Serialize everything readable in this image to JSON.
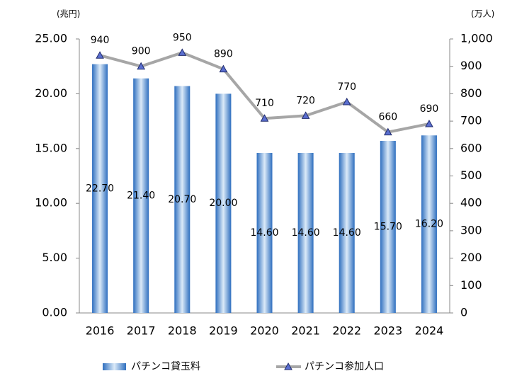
{
  "chart_data": {
    "type": "combo",
    "y_axis_label": "(兆円)",
    "y2_axis_label": "(万人)",
    "categories": [
      "2016",
      "2017",
      "2018",
      "2019",
      "2020",
      "2021",
      "2022",
      "2023",
      "2024"
    ],
    "series": [
      {
        "name": "パチンコ貸玉料",
        "type": "bar",
        "color": "#5b9bd5",
        "values": [
          22.7,
          21.4,
          20.7,
          20.0,
          14.6,
          14.6,
          14.6,
          15.7,
          16.2
        ],
        "value_labels": [
          "22.70",
          "21.40",
          "20.70",
          "20.00",
          "14.60",
          "14.60",
          "14.60",
          "15.70",
          "16.20"
        ]
      },
      {
        "name": "パチンコ参加人口",
        "type": "line",
        "axis": "y2",
        "color": "#a6a6a6",
        "marker_color": "#5b6fd0",
        "values": [
          940,
          900,
          950,
          890,
          710,
          720,
          770,
          660,
          690
        ]
      }
    ],
    "ylim": [
      0,
      25
    ],
    "yticks": [
      {
        "value": 0,
        "label": "0.00"
      },
      {
        "value": 5,
        "label": "5.00"
      },
      {
        "value": 10,
        "label": "10.00"
      },
      {
        "value": 15,
        "label": "15.00"
      },
      {
        "value": 20,
        "label": "20.00"
      },
      {
        "value": 25,
        "label": "25.00"
      }
    ],
    "y2lim": [
      0,
      1000
    ],
    "y2ticks": [
      0,
      100,
      200,
      300,
      400,
      500,
      600,
      700,
      800,
      900,
      {
        "value": 1000,
        "label": "1,000"
      }
    ],
    "grid": false,
    "legend": "bottom"
  }
}
